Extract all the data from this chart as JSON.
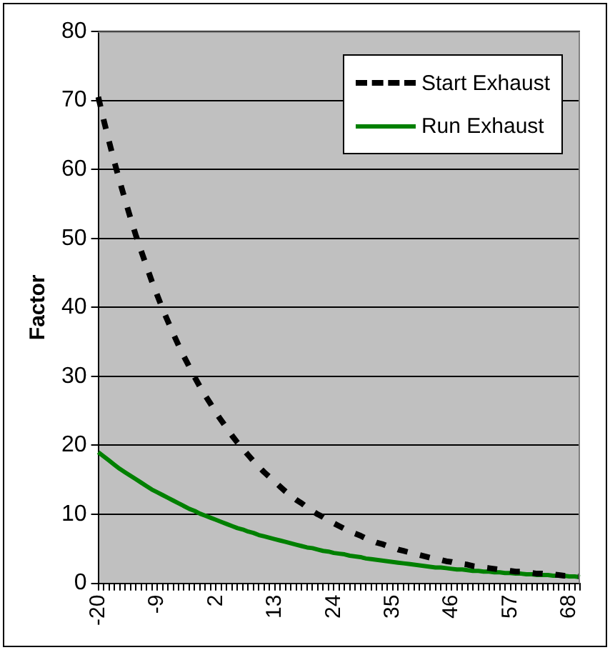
{
  "chart_data": {
    "type": "line",
    "ylabel": "Factor",
    "categories": [
      "-20",
      null,
      null,
      null,
      null,
      null,
      null,
      null,
      null,
      null,
      null,
      "-9",
      null,
      null,
      null,
      null,
      null,
      null,
      null,
      null,
      null,
      null,
      "2",
      null,
      null,
      null,
      null,
      null,
      null,
      null,
      null,
      null,
      null,
      "13",
      null,
      null,
      null,
      null,
      null,
      null,
      null,
      null,
      null,
      null,
      "24",
      null,
      null,
      null,
      null,
      null,
      null,
      null,
      null,
      null,
      null,
      "35",
      null,
      null,
      null,
      null,
      null,
      null,
      null,
      null,
      null,
      null,
      "46",
      null,
      null,
      null,
      null,
      null,
      null,
      null,
      null,
      null,
      null,
      "57",
      null,
      null,
      null,
      null,
      null,
      null,
      null,
      null,
      null,
      null,
      "68",
      null,
      null
    ],
    "series": [
      {
        "name": "Start Exhaust",
        "color": "#000000",
        "line_style": "dashed",
        "values": [
          70.5,
          67.2,
          64.1,
          61.1,
          58.3,
          55.6,
          53.0,
          50.5,
          48.2,
          46.0,
          43.8,
          41.8,
          39.8,
          38.0,
          36.2,
          34.5,
          32.9,
          31.4,
          29.9,
          28.5,
          27.2,
          26.0,
          24.7,
          23.6,
          22.5,
          21.4,
          20.4,
          19.5,
          18.6,
          17.7,
          16.9,
          16.1,
          15.4,
          14.7,
          14.0,
          13.3,
          12.7,
          12.1,
          11.6,
          11.0,
          10.5,
          10.0,
          9.6,
          9.1,
          8.7,
          8.3,
          7.9,
          7.5,
          7.2,
          6.9,
          6.5,
          6.2,
          5.9,
          5.7,
          5.4,
          5.2,
          4.9,
          4.7,
          4.5,
          4.3,
          4.1,
          3.9,
          3.7,
          3.5,
          3.4,
          3.2,
          3.1,
          2.9,
          2.8,
          2.7,
          2.5,
          2.4,
          2.3,
          2.2,
          2.1,
          2.0,
          1.9,
          1.8,
          1.7,
          1.7,
          1.6,
          1.5,
          1.4,
          1.4,
          1.3,
          1.3,
          1.2,
          1.1,
          1.1,
          1.0,
          1.0
        ]
      },
      {
        "name": "Run Exhaust",
        "color": "#008000",
        "line_style": "solid",
        "values": [
          19.0,
          18.4,
          17.8,
          17.2,
          16.6,
          16.1,
          15.6,
          15.1,
          14.6,
          14.1,
          13.6,
          13.2,
          12.8,
          12.4,
          12.0,
          11.6,
          11.2,
          10.8,
          10.5,
          10.1,
          9.8,
          9.5,
          9.2,
          8.9,
          8.6,
          8.3,
          8.0,
          7.8,
          7.5,
          7.3,
          7.0,
          6.8,
          6.6,
          6.4,
          6.2,
          6.0,
          5.8,
          5.6,
          5.4,
          5.2,
          5.1,
          4.9,
          4.7,
          4.6,
          4.4,
          4.3,
          4.2,
          4.0,
          3.9,
          3.8,
          3.6,
          3.5,
          3.4,
          3.3,
          3.2,
          3.1,
          3.0,
          2.9,
          2.8,
          2.7,
          2.6,
          2.5,
          2.4,
          2.3,
          2.3,
          2.2,
          2.1,
          2.0,
          2.0,
          1.9,
          1.8,
          1.8,
          1.7,
          1.7,
          1.6,
          1.6,
          1.5,
          1.5,
          1.4,
          1.4,
          1.3,
          1.3,
          1.2,
          1.2,
          1.2,
          1.1,
          1.1,
          1.1,
          1.0,
          1.0,
          0.9
        ]
      }
    ],
    "ylim": [
      0,
      80
    ],
    "yticks": [
      0,
      10,
      20,
      30,
      40,
      50,
      60,
      70,
      80
    ],
    "grid": "y",
    "legend": "top right",
    "marker": "none"
  }
}
